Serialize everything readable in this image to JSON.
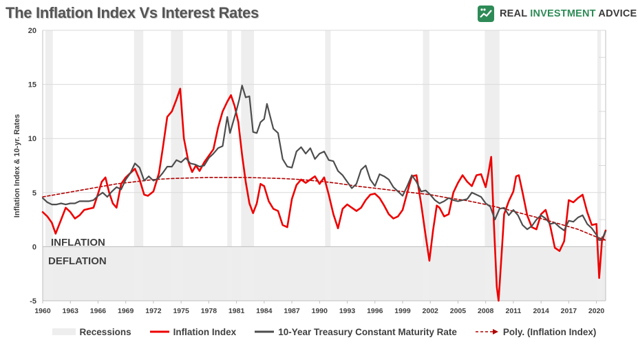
{
  "title": "The Inflation Index Vs Interest Rates",
  "brand": {
    "word1": "REAL ",
    "word2": "INVESTMENT",
    "word3": " ADVICE",
    "icon": "bull-chart-logo-icon",
    "green": "#2e8b57"
  },
  "annotations": {
    "inflation": "INFLATION",
    "deflation": "DEFLATION"
  },
  "legend": {
    "recessions": "Recessions",
    "inflation": "Inflation Index",
    "treasury": "10-Year Treasury Constant Maturity Rate",
    "poly": "Poly. (Inflation Index)"
  },
  "colors": {
    "inflation": "#ee0000",
    "treasury": "#4d4d4d",
    "poly": "#b00000",
    "recession": "#eeeeee",
    "deflation_zone": "#ededed"
  },
  "chart_data": {
    "type": "line",
    "title": "The Inflation Index Vs Interest Rates",
    "xlabel": "",
    "ylabel": "Inflation Index & 10-yr. Rates",
    "xlim": [
      1960,
      2021
    ],
    "ylim": [
      -5,
      20
    ],
    "x_ticks": [
      "1960",
      "1963",
      "1966",
      "1969",
      "1972",
      "1975",
      "1978",
      "1981",
      "1984",
      "1987",
      "1990",
      "1993",
      "1996",
      "1999",
      "2002",
      "2005",
      "2008",
      "2011",
      "2014",
      "2017",
      "2020"
    ],
    "y_ticks": [
      "-5",
      "0",
      "5",
      "10",
      "15",
      "20"
    ],
    "grid": true,
    "legend_position": "bottom",
    "recessions": [
      [
        1960.3,
        1961.1
      ],
      [
        1969.9,
        1970.9
      ],
      [
        1973.9,
        1975.2
      ],
      [
        1980.0,
        1980.5
      ],
      [
        1981.5,
        1982.9
      ],
      [
        1990.6,
        1991.2
      ],
      [
        2001.2,
        2001.9
      ],
      [
        2007.9,
        2009.5
      ],
      [
        2020.1,
        2020.5
      ]
    ],
    "deflation_zone": [
      -5,
      0
    ],
    "series": [
      {
        "name": "Inflation Index",
        "x": [
          1960.0,
          1960.5,
          1961.0,
          1961.4,
          1962.0,
          1962.5,
          1963.0,
          1963.5,
          1964.0,
          1964.5,
          1965.0,
          1965.5,
          1966.0,
          1966.4,
          1966.8,
          1967.2,
          1967.6,
          1968.0,
          1968.5,
          1969.0,
          1969.5,
          1970.0,
          1970.5,
          1971.0,
          1971.4,
          1972.0,
          1972.6,
          1973.0,
          1973.5,
          1974.0,
          1974.5,
          1974.9,
          1975.3,
          1975.8,
          1976.2,
          1976.6,
          1977.0,
          1977.5,
          1978.0,
          1978.5,
          1979.0,
          1979.5,
          1980.0,
          1980.4,
          1980.8,
          1981.2,
          1981.6,
          1982.0,
          1982.4,
          1982.8,
          1983.2,
          1983.6,
          1984.0,
          1984.5,
          1985.0,
          1985.5,
          1986.0,
          1986.5,
          1987.0,
          1987.5,
          1988.0,
          1988.5,
          1989.0,
          1989.5,
          1990.0,
          1990.5,
          1991.0,
          1991.5,
          1992.0,
          1992.5,
          1993.0,
          1993.5,
          1994.0,
          1994.5,
          1995.0,
          1995.5,
          1996.0,
          1996.5,
          1997.0,
          1997.5,
          1998.0,
          1998.5,
          1999.0,
          1999.5,
          2000.0,
          2000.5,
          2001.0,
          2001.5,
          2001.9,
          2002.3,
          2002.7,
          2003.0,
          2003.5,
          2004.0,
          2004.5,
          2005.0,
          2005.5,
          2006.0,
          2006.5,
          2007.0,
          2007.5,
          2008.0,
          2008.3,
          2008.6,
          2008.9,
          2009.2,
          2009.4,
          2009.7,
          2010.0,
          2010.5,
          2011.0,
          2011.3,
          2011.6,
          2012.0,
          2012.5,
          2013.0,
          2013.5,
          2014.0,
          2014.5,
          2015.0,
          2015.5,
          2016.0,
          2016.5,
          2017.0,
          2017.5,
          2018.0,
          2018.5,
          2019.0,
          2019.5,
          2020.0,
          2020.3,
          2020.6,
          2021.0
        ],
        "values": [
          3.2,
          2.8,
          2.2,
          1.2,
          2.5,
          3.6,
          3.2,
          2.6,
          2.9,
          3.4,
          3.5,
          3.6,
          4.9,
          6.0,
          6.4,
          5.0,
          4.0,
          3.6,
          5.8,
          6.4,
          6.8,
          7.2,
          6.2,
          4.8,
          4.7,
          5.1,
          6.8,
          9.0,
          12.0,
          12.5,
          13.6,
          14.6,
          10.0,
          7.8,
          6.9,
          7.5,
          7.0,
          7.8,
          8.4,
          9.0,
          11.0,
          12.5,
          13.4,
          14.0,
          13.0,
          11.5,
          8.5,
          6.0,
          4.0,
          3.1,
          4.0,
          5.8,
          5.6,
          4.2,
          3.5,
          3.3,
          2.0,
          1.8,
          4.4,
          5.7,
          6.2,
          5.9,
          6.2,
          6.5,
          5.8,
          6.4,
          4.8,
          3.0,
          1.7,
          3.5,
          3.9,
          3.6,
          3.3,
          3.6,
          4.3,
          4.8,
          4.9,
          4.5,
          3.8,
          3.0,
          2.6,
          2.8,
          3.4,
          5.0,
          6.5,
          6.6,
          4.0,
          1.0,
          -1.3,
          1.5,
          3.8,
          3.6,
          2.8,
          3.0,
          5.0,
          5.9,
          6.6,
          6.0,
          5.6,
          6.6,
          6.7,
          5.5,
          6.8,
          8.3,
          2.0,
          -3.7,
          -5.0,
          -1.0,
          3.0,
          4.2,
          5.1,
          6.5,
          6.6,
          5.0,
          2.9,
          1.8,
          1.6,
          3.0,
          3.4,
          1.9,
          -0.1,
          -0.4,
          0.5,
          4.3,
          4.1,
          4.5,
          4.8,
          3.2,
          2.0,
          2.1,
          -2.9,
          0.5,
          1.5
        ]
      },
      {
        "name": "10-Year Treasury Constant Maturity Rate",
        "x": [
          1960.0,
          1960.5,
          1961.0,
          1961.5,
          1962.0,
          1962.5,
          1963.0,
          1963.5,
          1964.0,
          1964.5,
          1965.0,
          1965.5,
          1966.0,
          1966.5,
          1967.0,
          1967.5,
          1968.0,
          1968.5,
          1969.0,
          1969.5,
          1970.0,
          1970.5,
          1971.0,
          1971.5,
          1972.0,
          1972.5,
          1973.0,
          1973.5,
          1974.0,
          1974.5,
          1975.0,
          1975.5,
          1976.0,
          1976.5,
          1977.0,
          1977.5,
          1978.0,
          1978.5,
          1979.0,
          1979.5,
          1980.0,
          1980.3,
          1980.6,
          1981.0,
          1981.3,
          1981.6,
          1982.0,
          1982.4,
          1982.8,
          1983.2,
          1983.6,
          1984.0,
          1984.3,
          1984.6,
          1985.0,
          1985.5,
          1986.0,
          1986.5,
          1987.0,
          1987.5,
          1988.0,
          1988.5,
          1989.0,
          1989.5,
          1990.0,
          1990.5,
          1991.0,
          1991.5,
          1992.0,
          1992.5,
          1993.0,
          1993.5,
          1994.0,
          1994.5,
          1995.0,
          1995.5,
          1996.0,
          1996.5,
          1997.0,
          1997.5,
          1998.0,
          1998.5,
          1999.0,
          1999.5,
          2000.0,
          2000.5,
          2001.0,
          2001.5,
          2002.0,
          2002.5,
          2003.0,
          2003.5,
          2004.0,
          2004.5,
          2005.0,
          2005.5,
          2006.0,
          2006.5,
          2007.0,
          2007.5,
          2008.0,
          2008.5,
          2009.0,
          2009.5,
          2010.0,
          2010.5,
          2011.0,
          2011.5,
          2012.0,
          2012.5,
          2013.0,
          2013.5,
          2014.0,
          2014.5,
          2015.0,
          2015.5,
          2016.0,
          2016.5,
          2017.0,
          2017.5,
          2018.0,
          2018.5,
          2019.0,
          2019.5,
          2020.0,
          2020.3,
          2020.6,
          2021.0
        ],
        "values": [
          4.5,
          4.1,
          3.9,
          3.9,
          4.0,
          3.9,
          4.0,
          4.0,
          4.2,
          4.2,
          4.2,
          4.3,
          4.7,
          5.0,
          4.6,
          5.1,
          5.5,
          5.3,
          6.2,
          6.8,
          7.7,
          7.3,
          6.1,
          6.5,
          6.1,
          6.3,
          6.8,
          7.4,
          7.4,
          8.0,
          7.8,
          8.2,
          7.7,
          7.6,
          7.4,
          7.5,
          8.2,
          8.6,
          9.1,
          9.3,
          12.0,
          10.5,
          11.4,
          12.6,
          13.6,
          14.9,
          13.8,
          13.9,
          10.6,
          10.5,
          11.5,
          11.8,
          13.2,
          12.2,
          10.9,
          10.5,
          8.1,
          7.4,
          7.3,
          8.8,
          9.2,
          8.6,
          9.1,
          8.1,
          8.6,
          8.8,
          8.0,
          7.9,
          7.0,
          6.6,
          6.0,
          5.4,
          5.8,
          7.1,
          7.5,
          6.2,
          5.6,
          6.7,
          6.5,
          6.2,
          5.5,
          5.1,
          4.7,
          5.6,
          6.6,
          6.0,
          5.1,
          5.2,
          4.8,
          4.3,
          4.0,
          4.2,
          4.5,
          4.3,
          4.2,
          4.3,
          4.4,
          5.0,
          4.8,
          4.6,
          4.0,
          3.7,
          2.5,
          3.5,
          3.6,
          2.9,
          3.4,
          2.9,
          2.0,
          1.6,
          1.9,
          2.5,
          2.9,
          2.6,
          2.1,
          2.2,
          1.8,
          1.5,
          2.4,
          2.3,
          2.7,
          2.9,
          2.1,
          1.7,
          1.1,
          0.6,
          0.7,
          1.4
        ]
      },
      {
        "name": "Poly. (Inflation Index)",
        "x": [
          1960,
          1962,
          1964,
          1966,
          1968,
          1970,
          1972,
          1974,
          1976,
          1978,
          1980,
          1982,
          1984,
          1986,
          1988,
          1990,
          1992,
          1994,
          1996,
          1998,
          2000,
          2002,
          2004,
          2006,
          2008,
          2010,
          2012,
          2014,
          2016,
          2018,
          2020,
          2021
        ],
        "values": [
          4.6,
          4.9,
          5.2,
          5.5,
          5.8,
          6.0,
          6.2,
          6.3,
          6.35,
          6.4,
          6.4,
          6.4,
          6.35,
          6.3,
          6.2,
          6.05,
          5.85,
          5.6,
          5.4,
          5.2,
          5.0,
          4.8,
          4.5,
          4.25,
          3.9,
          3.5,
          3.05,
          2.6,
          2.1,
          1.6,
          0.9,
          0.6
        ]
      }
    ]
  }
}
